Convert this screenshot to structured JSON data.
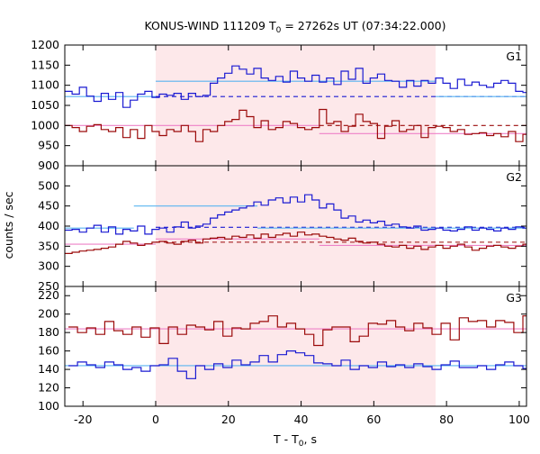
{
  "chart_data": {
    "type": "line",
    "title": {
      "pre": "KONUS-WIND 111209 T",
      "sub": "0",
      "post": " = 27262s UT (07:34:22.000)"
    },
    "xlabel": {
      "pre": "T - T",
      "sub": "0",
      "post": ", s"
    },
    "ylabel": "counts / sec",
    "xlim": [
      -25,
      102
    ],
    "x_ticks": [
      -20,
      0,
      20,
      40,
      60,
      80,
      100
    ],
    "shaded_interval": {
      "from": 0,
      "to": 77,
      "color": "#fde8ea"
    },
    "colors": {
      "red": "#9b0a0a",
      "blue": "#1a1ad2",
      "fit_red": "#ee82c8",
      "fit_blue": "#5ab4f0",
      "shade": "#fde8ea"
    },
    "panels": [
      {
        "label": "G1",
        "ylim": [
          900,
          1200
        ],
        "y_ticks": [
          900,
          950,
          1000,
          1050,
          1100,
          1150,
          1200
        ],
        "bin_start": -25,
        "bin_width": 2,
        "series": [
          {
            "color": "blue",
            "values": [
              1085,
              1078,
              1095,
              1073,
              1060,
              1080,
              1065,
              1082,
              1045,
              1063,
              1078,
              1085,
              1070,
              1078,
              1075,
              1080,
              1065,
              1080,
              1072,
              1075,
              1105,
              1118,
              1130,
              1148,
              1140,
              1128,
              1142,
              1118,
              1112,
              1122,
              1108,
              1135,
              1118,
              1110,
              1125,
              1108,
              1118,
              1102,
              1135,
              1115,
              1142,
              1105,
              1118,
              1128,
              1112,
              1110,
              1095,
              1112,
              1098,
              1112,
              1105,
              1118,
              1105,
              1092,
              1115,
              1100,
              1108,
              1100,
              1095,
              1105,
              1112,
              1105,
              1085,
              1082,
              1080,
              1090,
              1075,
              1085,
              1075,
              1088,
              1085,
              1060,
              1095,
              1072,
              1085,
              1062,
              1083,
              1070,
              1062,
              1088,
              1070,
              1078,
              1063,
              1080,
              1068,
              1078,
              1062,
              1072,
              1058,
              1075,
              1070,
              1062,
              1065,
              1078,
              1068,
              1072,
              1060,
              1082,
              1065,
              1070,
              1075,
              1065,
              1085,
              1065,
              1070,
              1058,
              1062,
              1072,
              1055,
              1062,
              1048,
              1068,
              1055,
              1062,
              1052,
              1070,
              1060,
              1072,
              1058,
              1062,
              1068,
              1075,
              1058,
              1065,
              1070,
              1080,
              1075,
              1070,
              1078,
              1082,
              1068,
              1075,
              1070,
              1080,
              1078,
              1065,
              1072,
              1060,
              1078,
              1072
            ]
          },
          {
            "color": "red",
            "values": [
              1000,
              995,
              985,
              998,
              1002,
              990,
              985,
              995,
              970,
              990,
              968,
              1000,
              985,
              975,
              990,
              985,
              1000,
              985,
              960,
              990,
              985,
              1000,
              1010,
              1015,
              1038,
              1022,
              995,
              1012,
              990,
              995,
              1010,
              1005,
              995,
              990,
              995,
              1040,
              1005,
              1010,
              985,
              998,
              1028,
              1010,
              1005,
              968,
              998,
              1012,
              985,
              990,
              1000,
              970,
              995,
              998,
              995,
              985,
              990,
              978,
              980,
              982,
              975,
              980,
              972,
              985,
              960,
              978,
              975,
              990,
              985,
              978,
              995,
              970,
              990,
              985,
              978,
              995,
              985,
              968,
              990,
              970,
              985,
              975,
              1008,
              988,
              995,
              968,
              985,
              975,
              992,
              980,
              995,
              975,
              982,
              970,
              985,
              985,
              975,
              990,
              978,
              985,
              970,
              988,
              980,
              975,
              990,
              982,
              978,
              985,
              972,
              985,
              975,
              980,
              970,
              985,
              978,
              965,
              980,
              975,
              985,
              968,
              980,
              975,
              985,
              972,
              978,
              968,
              985,
              975,
              980,
              970,
              985,
              972,
              980,
              988,
              975,
              980,
              972,
              985,
              975,
              980,
              982
            ]
          }
        ],
        "fits": [
          {
            "color": "fit_blue",
            "segments": [
              {
                "x": [
                  -25,
                  0
                ],
                "y": 1072
              },
              {
                "x": [
                  0,
                  77
                ],
                "y": 1110
              },
              {
                "x": [
                  77,
                  102
                ],
                "y": 1072
              }
            ]
          },
          {
            "color": "fit_red",
            "segments": [
              {
                "x": [
                  -25,
                  45
                ],
                "y": 1000
              },
              {
                "x": [
                  45,
                  102
                ],
                "y": 980
              }
            ]
          }
        ],
        "baselines": [
          {
            "color": "blue",
            "y": 1072,
            "x": [
              0,
              102
            ]
          },
          {
            "color": "red",
            "y": 1000,
            "x": [
              45,
              102
            ]
          }
        ]
      },
      {
        "label": "G2",
        "ylim": [
          250,
          550
        ],
        "y_ticks": [
          250,
          300,
          350,
          400,
          450,
          500
        ],
        "bin_start": -25,
        "bin_width": 2,
        "series": [
          {
            "color": "blue",
            "values": [
              390,
              392,
              385,
              395,
              402,
              385,
              398,
              380,
              392,
              388,
              400,
              380,
              392,
              395,
              385,
              398,
              410,
              395,
              400,
              405,
              420,
              428,
              435,
              440,
              445,
              450,
              460,
              452,
              465,
              470,
              458,
              472,
              460,
              478,
              465,
              445,
              455,
              440,
              420,
              425,
              410,
              415,
              408,
              412,
              402,
              405,
              398,
              395,
              400,
              390,
              392,
              395,
              390,
              388,
              392,
              398,
              390,
              395,
              392,
              388,
              395,
              392,
              398,
              395,
              400,
              392,
              395,
              398,
              402,
              395,
              398,
              400,
              405,
              410,
              402,
              408,
              412,
              405,
              408,
              400,
              395,
              398,
              392,
              395,
              398,
              390,
              395,
              398,
              392,
              388,
              395,
              400,
              392,
              398,
              395,
              405,
              398,
              392,
              395,
              400,
              392,
              398,
              405,
              398,
              392,
              395,
              390,
              398,
              400,
              395,
              390,
              398,
              402,
              395,
              392,
              390,
              395,
              398,
              400,
              392,
              396,
              394,
              398,
              392,
              390,
              396,
              398,
              402,
              400,
              395,
              392,
              398,
              395,
              400,
              398,
              392,
              395,
              398,
              396
            ]
          },
          {
            "color": "red",
            "values": [
              332,
              335,
              338,
              340,
              342,
              345,
              348,
              355,
              362,
              358,
              352,
              356,
              360,
              362,
              358,
              355,
              362,
              365,
              358,
              368,
              370,
              372,
              368,
              375,
              372,
              378,
              370,
              380,
              372,
              378,
              382,
              375,
              385,
              378,
              380,
              375,
              372,
              368,
              365,
              370,
              362,
              358,
              360,
              355,
              350,
              348,
              352,
              345,
              350,
              342,
              348,
              352,
              345,
              350,
              355,
              348,
              340,
              345,
              350,
              352,
              348,
              345,
              350,
              355,
              342,
              348,
              352,
              345,
              350,
              358,
              352,
              348,
              355,
              360,
              350,
              345,
              352,
              350,
              348,
              345,
              352,
              350,
              345,
              348,
              350,
              355,
              348,
              345,
              350,
              352,
              348,
              342,
              350,
              345,
              348,
              352,
              350,
              345,
              348,
              350,
              346,
              352,
              348,
              345,
              350,
              348,
              345,
              350,
              352,
              348,
              345,
              342,
              348,
              350,
              345,
              348,
              352,
              346,
              348,
              350,
              345,
              350,
              348,
              352,
              346,
              348,
              350,
              345,
              348,
              350,
              352,
              348,
              346,
              350,
              348,
              345,
              350,
              348,
              350
            ]
          }
        ],
        "fits": [
          {
            "color": "fit_blue",
            "segments": [
              {
                "x": [
                  -25,
                  -6
                ],
                "y": 395
              },
              {
                "x": [
                  -6,
                  28
                ],
                "y": 450
              },
              {
                "x": [
                  28,
                  102
                ],
                "y": 395
              }
            ]
          },
          {
            "color": "fit_red",
            "segments": [
              {
                "x": [
                  -25,
                  0
                ],
                "y": 355
              },
              {
                "x": [
                  0,
                  45
                ],
                "y": 368
              },
              {
                "x": [
                  45,
                  102
                ],
                "y": 352
              }
            ]
          }
        ],
        "baselines": [
          {
            "color": "blue",
            "y": 397,
            "x": [
              0,
              102
            ]
          },
          {
            "color": "red",
            "y": 360,
            "x": [
              0,
              102
            ]
          }
        ]
      },
      {
        "label": "G3",
        "ylim": [
          100,
          230
        ],
        "y_ticks": [
          100,
          120,
          140,
          160,
          180,
          200,
          220
        ],
        "bin_start": -24,
        "bin_width": 2.5,
        "series": [
          {
            "color": "red",
            "values": [
              186,
              180,
              185,
              178,
              192,
              182,
              178,
              186,
              175,
              185,
              168,
              186,
              178,
              188,
              186,
              183,
              192,
              176,
              185,
              184,
              190,
              192,
              198,
              186,
              190,
              184,
              178,
              166,
              183,
              186,
              186,
              170,
              176,
              190,
              189,
              193,
              186,
              182,
              190,
              185,
              178,
              190,
              172,
              196,
              192,
              193,
              186,
              193,
              191,
              180,
              198,
              182,
              189,
              178,
              196,
              182,
              184,
              180,
              190,
              184,
              180,
              184,
              168,
              193,
              182,
              186,
              198
            ]
          },
          {
            "color": "blue",
            "values": [
              144,
              148,
              145,
              142,
              148,
              145,
              140,
              142,
              138,
              144,
              145,
              152,
              138,
              130,
              144,
              140,
              146,
              142,
              150,
              145,
              148,
              155,
              148,
              156,
              160,
              158,
              155,
              147,
              146,
              144,
              150,
              140,
              144,
              142,
              148,
              143,
              145,
              142,
              146,
              143,
              140,
              145,
              149,
              142,
              142,
              144,
              140,
              145,
              148,
              144,
              141,
              145,
              142,
              144,
              146,
              143,
              142,
              140,
              137,
              146,
              143,
              140,
              142,
              146,
              140,
              144,
              142
            ]
          }
        ],
        "fits": [
          {
            "color": "fit_red",
            "segments": [
              {
                "x": [
                  -25,
                  102
                ],
                "y": 184
              }
            ]
          },
          {
            "color": "fit_blue",
            "segments": [
              {
                "x": [
                  -25,
                  102
                ],
                "y": 144
              }
            ]
          }
        ],
        "baselines": []
      }
    ]
  }
}
